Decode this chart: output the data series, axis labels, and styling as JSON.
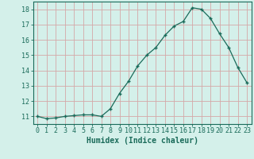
{
  "x": [
    0,
    1,
    2,
    3,
    4,
    5,
    6,
    7,
    8,
    9,
    10,
    11,
    12,
    13,
    14,
    15,
    16,
    17,
    18,
    19,
    20,
    21,
    22,
    23
  ],
  "y": [
    11.0,
    10.85,
    10.9,
    11.0,
    11.05,
    11.1,
    11.1,
    11.0,
    11.5,
    12.5,
    13.3,
    14.3,
    15.0,
    15.5,
    16.3,
    16.9,
    17.2,
    18.1,
    18.0,
    17.4,
    16.4,
    15.5,
    14.2,
    13.2
  ],
  "xlabel": "Humidex (Indice chaleur)",
  "ylim": [
    10.5,
    18.5
  ],
  "xlim": [
    -0.5,
    23.5
  ],
  "yticks": [
    11,
    12,
    13,
    14,
    15,
    16,
    17,
    18
  ],
  "xticks": [
    0,
    1,
    2,
    3,
    4,
    5,
    6,
    7,
    8,
    9,
    10,
    11,
    12,
    13,
    14,
    15,
    16,
    17,
    18,
    19,
    20,
    21,
    22,
    23
  ],
  "line_color": "#1a6b5a",
  "marker_color": "#1a6b5a",
  "bg_color": "#d4f0ea",
  "grid_color_major": "#d4a8a8",
  "grid_color_minor": "#d4f0ea",
  "axis_color": "#1a6b5a",
  "label_fontsize": 7.0,
  "tick_fontsize": 6.0,
  "figsize": [
    3.2,
    2.0
  ],
  "dpi": 100
}
